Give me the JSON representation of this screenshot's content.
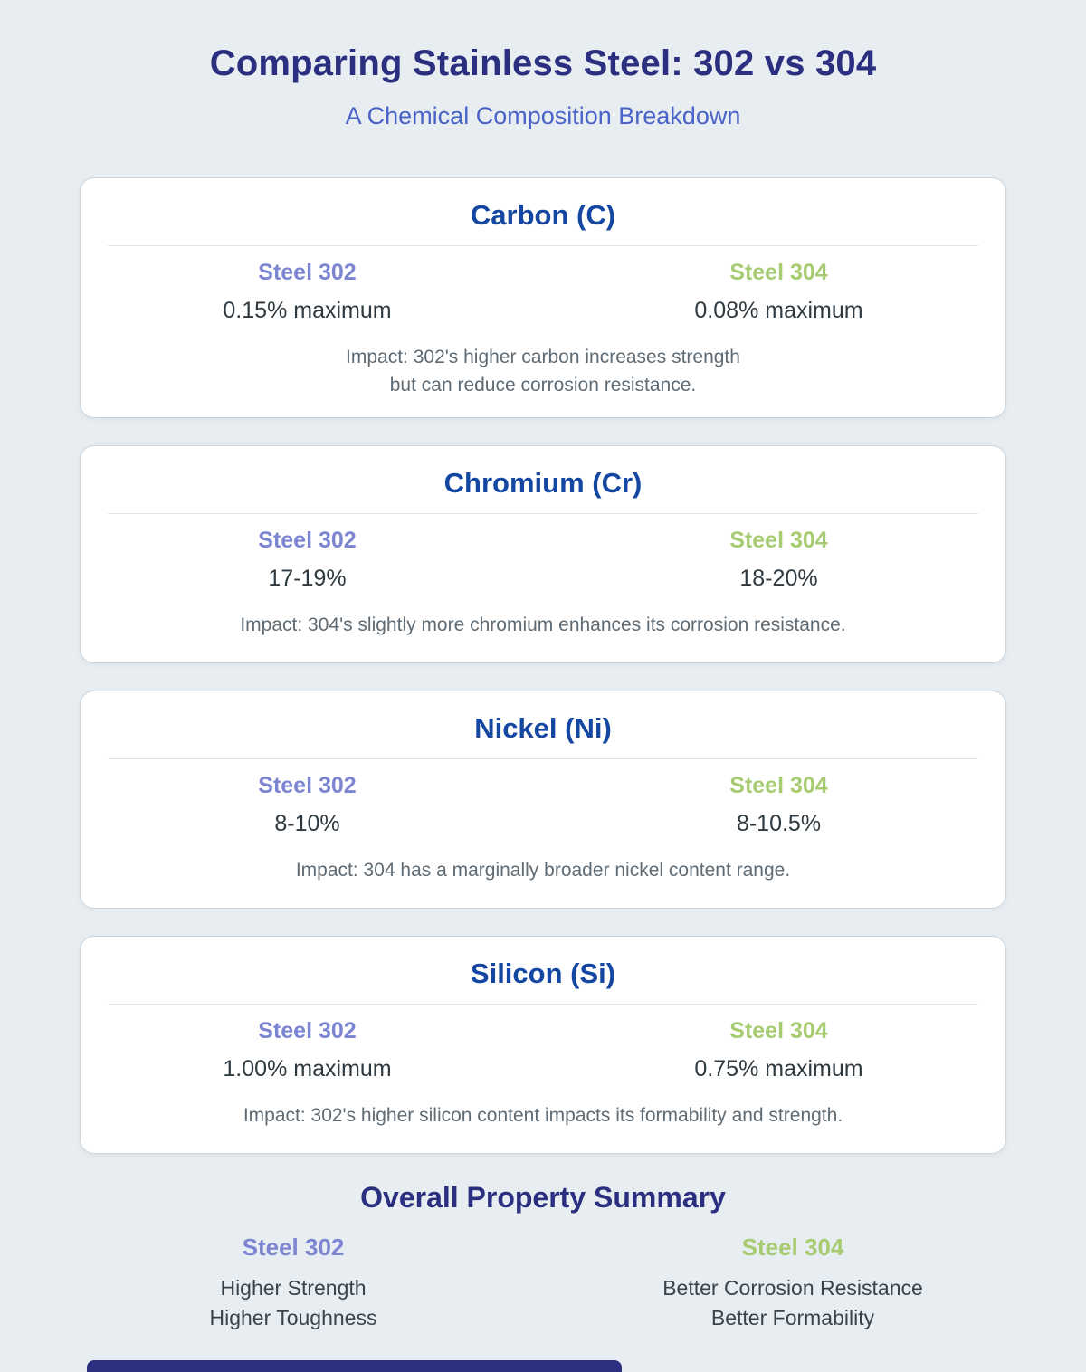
{
  "page": {
    "title": "Comparing Stainless Steel: 302 vs 304",
    "subtitle": "A Chemical Composition Breakdown",
    "background_color": "#e8edf1",
    "title_color": "#2b2f80",
    "subtitle_color": "#4a63c8"
  },
  "colors": {
    "card_title": "#1447a1",
    "steel_302_label": "#7c85d1",
    "steel_304_label": "#a6cb70",
    "value_text": "#2e3940",
    "impact_text": "#5f6b74",
    "footer_bar": "#2b3180"
  },
  "labels": {
    "steel_302": "Steel 302",
    "steel_304": "Steel 304"
  },
  "elements": [
    {
      "title": "Carbon (C)",
      "steel_302_value": "0.15% maximum",
      "steel_304_value": "0.08% maximum",
      "impact_line1": "Impact: 302's higher carbon increases strength",
      "impact_line2": "but can reduce corrosion resistance."
    },
    {
      "title": "Chromium (Cr)",
      "steel_302_value": "17-19%",
      "steel_304_value": "18-20%",
      "impact_line1": "Impact: 304's slightly more chromium enhances its corrosion resistance."
    },
    {
      "title": "Nickel (Ni)",
      "steel_302_value": "8-10%",
      "steel_304_value": "8-10.5%",
      "impact_line1": "Impact: 304 has a marginally broader nickel content range."
    },
    {
      "title": "Silicon (Si)",
      "steel_302_value": "1.00% maximum",
      "steel_304_value": "0.75% maximum",
      "impact_line1": "Impact: 302's higher silicon content impacts its formability and strength."
    }
  ],
  "summary": {
    "title": "Overall Property Summary",
    "steel_302_prop_1": "Higher Strength",
    "steel_302_prop_2": "Higher Toughness",
    "steel_304_prop_1": "Better Corrosion Resistance",
    "steel_304_prop_2": "Better Formability"
  }
}
